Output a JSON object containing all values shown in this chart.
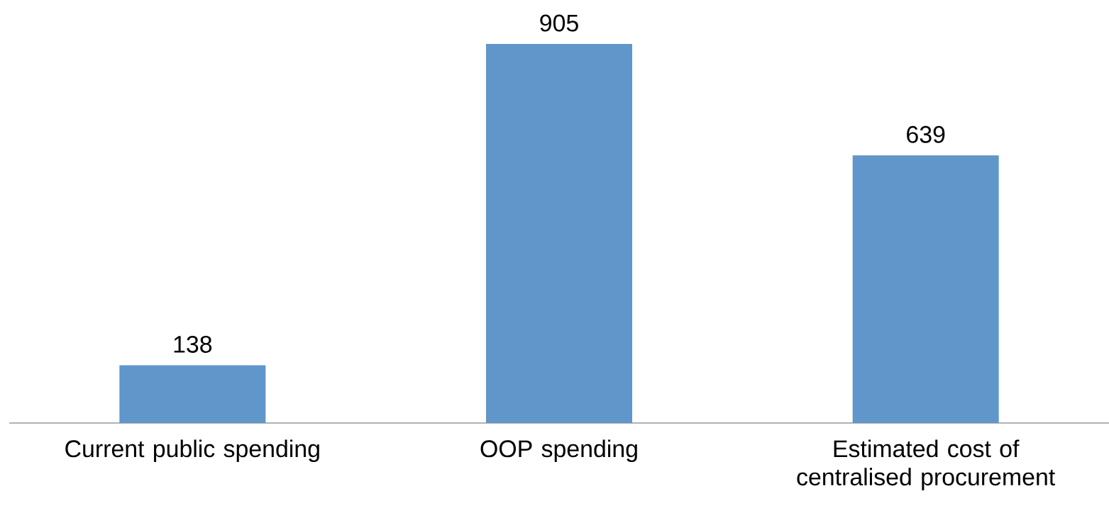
{
  "chart_data": {
    "type": "bar",
    "categories": [
      "Current public spending",
      "OOP spending",
      "Estimated cost of centralised procurement"
    ],
    "values": [
      138,
      905,
      639
    ],
    "color": "#6096c9",
    "data_labels": true
  }
}
